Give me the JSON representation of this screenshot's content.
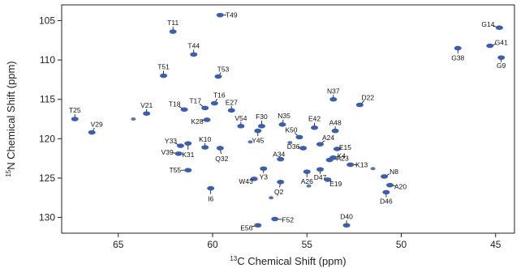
{
  "chart_data": {
    "type": "scatter",
    "title": "",
    "xlabel_sup": "13",
    "xlabel_text": "C Chemical Shift (ppm)",
    "ylabel_sup": "15",
    "ylabel_text": "N Chemical Shift (ppm)",
    "xlim": [
      68,
      44
    ],
    "ylim": [
      103,
      132
    ],
    "x_reversed": true,
    "y_reversed": true,
    "grid": false,
    "legend": "none",
    "x_ticks": [
      65,
      60,
      55,
      50,
      45
    ],
    "y_ticks": [
      105,
      110,
      115,
      120,
      125,
      130
    ],
    "peak_color": "#3b5fae",
    "leader_color": "#000000",
    "peaks": [
      {
        "label": "T49",
        "x": 59.6,
        "y": 104.3
      },
      {
        "label": "T11",
        "x": 62.1,
        "y": 106.4
      },
      {
        "label": "G14",
        "x": 44.8,
        "y": 105.9
      },
      {
        "label": "G41",
        "x": 45.3,
        "y": 108.2
      },
      {
        "label": "T44",
        "x": 61.0,
        "y": 109.3
      },
      {
        "label": "T51",
        "x": 62.6,
        "y": 112.0
      },
      {
        "label": "T53",
        "x": 59.7,
        "y": 112.1
      },
      {
        "label": "G38",
        "x": 47.0,
        "y": 108.5
      },
      {
        "label": "G9",
        "x": 44.7,
        "y": 109.7
      },
      {
        "label": "N37",
        "x": 53.6,
        "y": 115.0
      },
      {
        "label": "D22",
        "x": 52.2,
        "y": 115.7
      },
      {
        "label": "T25",
        "x": 67.3,
        "y": 117.5
      },
      {
        "label": "V29",
        "x": 66.4,
        "y": 119.2
      },
      {
        "label": "V21",
        "x": 63.5,
        "y": 116.8
      },
      {
        "label": "T18",
        "x": 61.5,
        "y": 116.3
      },
      {
        "label": "T17",
        "x": 60.4,
        "y": 116.1
      },
      {
        "label": "T16",
        "x": 59.9,
        "y": 115.5
      },
      {
        "label": "E27",
        "x": 59.0,
        "y": 116.4
      },
      {
        "label": "K28",
        "x": 60.3,
        "y": 117.6
      },
      {
        "label": "V54",
        "x": 58.5,
        "y": 118.4
      },
      {
        "label": "F30",
        "x": 57.4,
        "y": 118.4
      },
      {
        "label": "N35",
        "x": 56.3,
        "y": 118.2
      },
      {
        "label": "Y45",
        "x": 57.6,
        "y": 119.0
      },
      {
        "label": "E42",
        "x": 54.6,
        "y": 118.6
      },
      {
        "label": "A48",
        "x": 53.5,
        "y": 119.0
      },
      {
        "label": "K50",
        "x": 55.4,
        "y": 119.8
      },
      {
        "label": "D36",
        "x": 55.2,
        "y": 121.2
      },
      {
        "label": "A24",
        "x": 54.3,
        "y": 120.7
      },
      {
        "label": "E15",
        "x": 53.4,
        "y": 121.3
      },
      {
        "label": "K4",
        "x": 53.6,
        "y": 122.4
      },
      {
        "label": "A23",
        "x": 53.8,
        "y": 122.7
      },
      {
        "label": "K13",
        "x": 52.7,
        "y": 123.3
      },
      {
        "label": "D47",
        "x": 54.3,
        "y": 123.9
      },
      {
        "label": "Y33",
        "x": 61.7,
        "y": 120.9
      },
      {
        "label": "V39",
        "x": 61.8,
        "y": 121.9
      },
      {
        "label": "K10",
        "x": 60.4,
        "y": 121.1
      },
      {
        "label": "K31",
        "x": 61.3,
        "y": 120.6
      },
      {
        "label": "Q32",
        "x": 59.6,
        "y": 121.2
      },
      {
        "label": "A34",
        "x": 56.4,
        "y": 122.6
      },
      {
        "label": "Y3",
        "x": 57.3,
        "y": 123.8
      },
      {
        "label": "W43",
        "x": 57.8,
        "y": 125.1
      },
      {
        "label": "A26",
        "x": 55.0,
        "y": 124.2
      },
      {
        "label": "E19",
        "x": 53.9,
        "y": 125.2
      },
      {
        "label": "Q2",
        "x": 56.4,
        "y": 125.5
      },
      {
        "label": "T55",
        "x": 61.3,
        "y": 124.0
      },
      {
        "label": "I6",
        "x": 60.1,
        "y": 126.3
      },
      {
        "label": "N8",
        "x": 50.9,
        "y": 124.8
      },
      {
        "label": "A20",
        "x": 50.6,
        "y": 125.9
      },
      {
        "label": "D46",
        "x": 50.8,
        "y": 126.8
      },
      {
        "label": "D40",
        "x": 52.9,
        "y": 131.0
      },
      {
        "label": "F52",
        "x": 56.7,
        "y": 130.2
      },
      {
        "label": "E56",
        "x": 57.6,
        "y": 131.0
      }
    ],
    "extra_peaks": [
      {
        "x": 64.2,
        "y": 117.5
      },
      {
        "x": 58.0,
        "y": 120.4
      },
      {
        "x": 55.9,
        "y": 120.5
      },
      {
        "x": 54.9,
        "y": 126.0
      },
      {
        "x": 51.5,
        "y": 123.8
      },
      {
        "x": 56.9,
        "y": 127.5
      }
    ]
  }
}
